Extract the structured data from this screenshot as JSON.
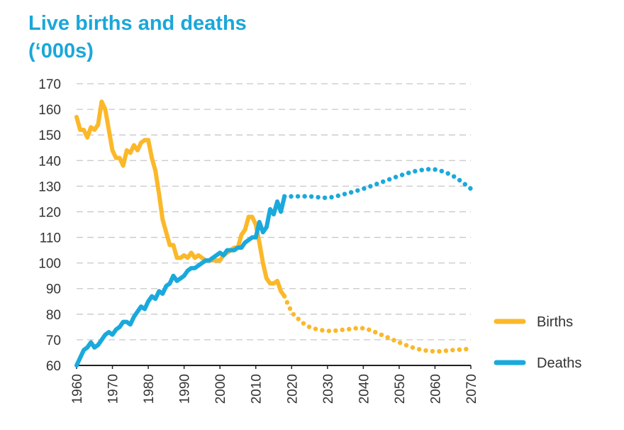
{
  "chart_data": {
    "type": "line",
    "title": "Live births and deaths",
    "subtitle": "(‘000s)",
    "xlabel": "",
    "ylabel": "",
    "xlim": [
      1960,
      2070
    ],
    "ylim": [
      60,
      170
    ],
    "x_ticks": [
      1960,
      1970,
      1980,
      1990,
      2000,
      2010,
      2020,
      2030,
      2040,
      2050,
      2060,
      2070
    ],
    "y_ticks": [
      60,
      70,
      80,
      90,
      100,
      110,
      120,
      130,
      140,
      150,
      160,
      170
    ],
    "grid": "horizontal dashed",
    "legend_position": "right",
    "colors": {
      "title": "#1aa7d9",
      "births": "#fbb829",
      "deaths": "#1aa9dc"
    },
    "series": [
      {
        "name": "Births",
        "actual": [
          [
            1960,
            157
          ],
          [
            1961,
            152
          ],
          [
            1962,
            152
          ],
          [
            1963,
            149
          ],
          [
            1964,
            153
          ],
          [
            1965,
            152
          ],
          [
            1966,
            154
          ],
          [
            1967,
            163
          ],
          [
            1968,
            160
          ],
          [
            1969,
            152
          ],
          [
            1970,
            144
          ],
          [
            1971,
            141
          ],
          [
            1972,
            141
          ],
          [
            1973,
            138
          ],
          [
            1974,
            144
          ],
          [
            1975,
            143
          ],
          [
            1976,
            146
          ],
          [
            1977,
            144
          ],
          [
            1978,
            147
          ],
          [
            1979,
            148
          ],
          [
            1980,
            148
          ],
          [
            1981,
            141
          ],
          [
            1982,
            136
          ],
          [
            1983,
            127
          ],
          [
            1984,
            117
          ],
          [
            1985,
            112
          ],
          [
            1986,
            107
          ],
          [
            1987,
            107
          ],
          [
            1988,
            102
          ],
          [
            1989,
            102
          ],
          [
            1990,
            103
          ],
          [
            1991,
            102
          ],
          [
            1992,
            104
          ],
          [
            1993,
            102
          ],
          [
            1994,
            103
          ],
          [
            1995,
            102
          ],
          [
            1996,
            101
          ],
          [
            1997,
            101
          ],
          [
            1998,
            101
          ],
          [
            1999,
            101
          ],
          [
            2000,
            101
          ],
          [
            2001,
            103
          ],
          [
            2002,
            104
          ],
          [
            2003,
            105
          ],
          [
            2004,
            106
          ],
          [
            2005,
            106
          ],
          [
            2006,
            111
          ],
          [
            2007,
            113
          ],
          [
            2008,
            118
          ],
          [
            2009,
            118
          ],
          [
            2010,
            115
          ],
          [
            2011,
            108
          ],
          [
            2012,
            100
          ],
          [
            2013,
            94
          ],
          [
            2014,
            92
          ],
          [
            2015,
            92
          ],
          [
            2016,
            93
          ],
          [
            2017,
            89
          ],
          [
            2018,
            87
          ]
        ],
        "projected": [
          [
            2018,
            87
          ],
          [
            2020,
            81
          ],
          [
            2022,
            78
          ],
          [
            2025,
            75
          ],
          [
            2030,
            73.5
          ],
          [
            2035,
            74
          ],
          [
            2040,
            74.5
          ],
          [
            2045,
            72
          ],
          [
            2050,
            69
          ],
          [
            2055,
            66.5
          ],
          [
            2060,
            65.5
          ],
          [
            2065,
            66
          ],
          [
            2070,
            66.5
          ]
        ]
      },
      {
        "name": "Deaths",
        "actual": [
          [
            1960,
            60
          ],
          [
            1961,
            63
          ],
          [
            1962,
            66
          ],
          [
            1963,
            67
          ],
          [
            1964,
            69
          ],
          [
            1965,
            67
          ],
          [
            1966,
            68
          ],
          [
            1967,
            70
          ],
          [
            1968,
            72
          ],
          [
            1969,
            73
          ],
          [
            1970,
            72
          ],
          [
            1971,
            74
          ],
          [
            1972,
            75
          ],
          [
            1973,
            77
          ],
          [
            1974,
            77
          ],
          [
            1975,
            76
          ],
          [
            1976,
            79
          ],
          [
            1977,
            81
          ],
          [
            1978,
            83
          ],
          [
            1979,
            82
          ],
          [
            1980,
            85
          ],
          [
            1981,
            87
          ],
          [
            1982,
            86
          ],
          [
            1983,
            89
          ],
          [
            1984,
            88
          ],
          [
            1985,
            91
          ],
          [
            1986,
            92
          ],
          [
            1987,
            95
          ],
          [
            1988,
            93
          ],
          [
            1989,
            94
          ],
          [
            1990,
            95
          ],
          [
            1991,
            97
          ],
          [
            1992,
            98
          ],
          [
            1993,
            98
          ],
          [
            1994,
            99
          ],
          [
            1995,
            100
          ],
          [
            1996,
            101
          ],
          [
            1997,
            101
          ],
          [
            1998,
            102
          ],
          [
            1999,
            103
          ],
          [
            2000,
            104
          ],
          [
            2001,
            103
          ],
          [
            2002,
            105
          ],
          [
            2003,
            105
          ],
          [
            2004,
            105
          ],
          [
            2005,
            106
          ],
          [
            2006,
            106
          ],
          [
            2007,
            108
          ],
          [
            2008,
            109
          ],
          [
            2009,
            110
          ],
          [
            2010,
            110
          ],
          [
            2011,
            116
          ],
          [
            2012,
            112
          ],
          [
            2013,
            114
          ],
          [
            2014,
            121
          ],
          [
            2015,
            119
          ],
          [
            2016,
            124
          ],
          [
            2017,
            120
          ],
          [
            2018,
            126
          ]
        ],
        "projected": [
          [
            2018,
            126
          ],
          [
            2020,
            126
          ],
          [
            2025,
            126
          ],
          [
            2030,
            125.5
          ],
          [
            2035,
            127
          ],
          [
            2040,
            129
          ],
          [
            2045,
            131.5
          ],
          [
            2050,
            134
          ],
          [
            2055,
            136
          ],
          [
            2060,
            136.5
          ],
          [
            2065,
            134
          ],
          [
            2070,
            129
          ]
        ]
      }
    ]
  }
}
